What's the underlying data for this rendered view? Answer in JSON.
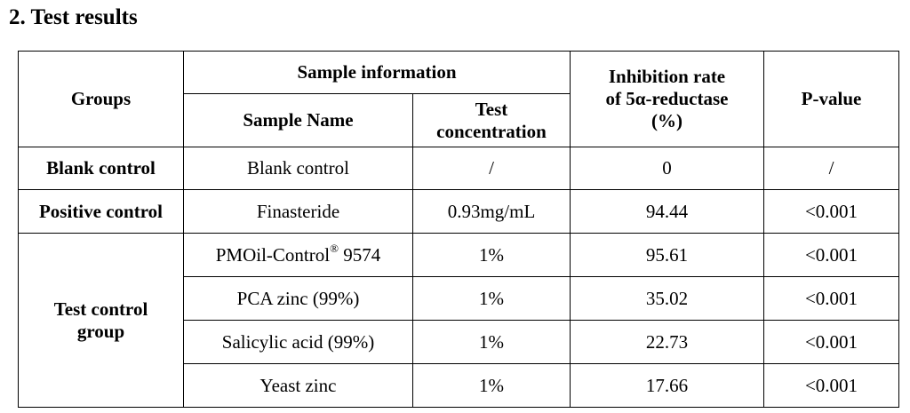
{
  "heading": "2. Test results",
  "headers": {
    "groups": "Groups",
    "sample_information": "Sample information",
    "sample_name": "Sample Name",
    "test_concentration_line1": "Test",
    "test_concentration_line2": "concentration",
    "inhibition_line1": "Inhibition rate",
    "inhibition_line2": "of 5α-reductase",
    "inhibition_line3": "(%)",
    "p_value": "P-value"
  },
  "groups": {
    "blank": "Blank control",
    "positive": "Positive control",
    "test_line1": "Test control",
    "test_line2": "group"
  },
  "rows": [
    {
      "sample_name": "Blank control",
      "concentration": "/",
      "inhibition": "0",
      "p_value": "/"
    },
    {
      "sample_name": "Finasteride",
      "concentration": "0.93mg/mL",
      "inhibition": "94.44",
      "p_value": "<0.001"
    },
    {
      "sample_name": "PMOil-Control",
      "sample_name_mark": "®",
      "sample_name_suffix": " 9574",
      "concentration": "1%",
      "inhibition": "95.61",
      "p_value": "<0.001"
    },
    {
      "sample_name": "PCA zinc (99%)",
      "concentration": "1%",
      "inhibition": "35.02",
      "p_value": "<0.001"
    },
    {
      "sample_name": "Salicylic acid (99%)",
      "concentration": "1%",
      "inhibition": "22.73",
      "p_value": "<0.001"
    },
    {
      "sample_name": "Yeast zinc",
      "concentration": "1%",
      "inhibition": "17.66",
      "p_value": "<0.001"
    }
  ]
}
